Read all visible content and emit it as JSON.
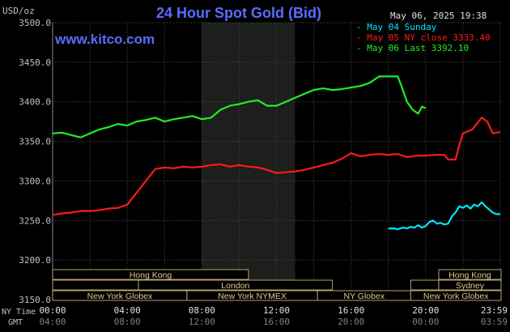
{
  "header": {
    "title": "24 Hour Spot Gold (Bid)",
    "date": "May 06, 2025 19:38",
    "site": "www.kitco.com",
    "units": "USD/oz"
  },
  "legend": [
    {
      "text": "May 04 Sunday",
      "color": "#00e5ff"
    },
    {
      "text": "May 05 NY close 3333.40",
      "color": "#ff1a1a"
    },
    {
      "text": "May 06 Last 3392.10",
      "color": "#22ee22"
    }
  ],
  "axis": {
    "nytime_label": "NY Time",
    "gmt_label": "GMT",
    "x_ticks_ny": [
      "00:00",
      "04:00",
      "08:00",
      "12:00",
      "16:00",
      "20:00",
      "23:59"
    ],
    "x_ticks_gmt": [
      "04:00",
      "08:00",
      "12:00",
      "16:00",
      "20:00",
      "00:00",
      "03:59"
    ],
    "y_ticks": [
      "3500.0",
      "3450.0",
      "3400.0",
      "3350.0",
      "3300.0",
      "3250.0",
      "3200.0",
      "3150.0"
    ]
  },
  "markets": {
    "hong_kong_left": "Hong Kong",
    "london": "London",
    "ny_globex_left": "New York Globex",
    "ny_nymex": "New York NYMEX",
    "ny_globex_mid": "NY Globex",
    "hong_kong_right": "Hong Kong",
    "sydney": "Sydney",
    "ny_globex_right": "New York Globex"
  },
  "colors": {
    "background": "#000000",
    "plot_bg": "#000000",
    "shade": "#1c1f1c",
    "grid": "#4a4a4a",
    "title": "#5a6cff",
    "site": "#5a6cff",
    "text": "#c0c0c0",
    "box_fill": "#000000",
    "box_stroke": "#b8a070",
    "box_text": "#e0c890"
  },
  "chart_data": {
    "type": "line",
    "ylim": [
      3150,
      3500
    ],
    "xlim": [
      0,
      24
    ],
    "x_unit": "hours (NY time)",
    "grid": true,
    "shaded_hours": [
      8,
      13
    ],
    "series": [
      {
        "name": "May 04 Sunday",
        "color": "#00e5ff",
        "points": [
          [
            18.0,
            3240
          ],
          [
            18.3,
            3240
          ],
          [
            18.5,
            3239
          ],
          [
            18.8,
            3241
          ],
          [
            19.0,
            3240
          ],
          [
            19.2,
            3242
          ],
          [
            19.4,
            3241
          ],
          [
            19.6,
            3244
          ],
          [
            19.8,
            3241
          ],
          [
            20.0,
            3243
          ],
          [
            20.2,
            3248
          ],
          [
            20.4,
            3250
          ],
          [
            20.6,
            3246
          ],
          [
            20.8,
            3247
          ],
          [
            21.0,
            3245
          ],
          [
            21.2,
            3246
          ],
          [
            21.4,
            3255
          ],
          [
            21.6,
            3260
          ],
          [
            21.8,
            3268
          ],
          [
            22.0,
            3266
          ],
          [
            22.2,
            3269
          ],
          [
            22.4,
            3265
          ],
          [
            22.6,
            3270
          ],
          [
            22.8,
            3268
          ],
          [
            23.0,
            3273
          ],
          [
            23.2,
            3268
          ],
          [
            23.4,
            3264
          ],
          [
            23.6,
            3260
          ],
          [
            23.8,
            3258
          ],
          [
            24.0,
            3258
          ]
        ]
      },
      {
        "name": "May 05 NY close 3333.40",
        "color": "#ff1a1a",
        "points": [
          [
            0,
            3257
          ],
          [
            0.5,
            3259
          ],
          [
            1.0,
            3260
          ],
          [
            1.5,
            3262
          ],
          [
            2.0,
            3262
          ],
          [
            2.5,
            3263
          ],
          [
            3.0,
            3265
          ],
          [
            3.5,
            3266
          ],
          [
            4.0,
            3270
          ],
          [
            4.5,
            3285
          ],
          [
            5.0,
            3300
          ],
          [
            5.5,
            3315
          ],
          [
            6.0,
            3317
          ],
          [
            6.5,
            3316
          ],
          [
            7.0,
            3318
          ],
          [
            7.5,
            3317
          ],
          [
            8.0,
            3318
          ],
          [
            8.5,
            3320
          ],
          [
            9.0,
            3321
          ],
          [
            9.5,
            3318
          ],
          [
            10.0,
            3320
          ],
          [
            10.5,
            3318
          ],
          [
            11.0,
            3317
          ],
          [
            11.5,
            3314
          ],
          [
            12.0,
            3310
          ],
          [
            12.5,
            3311
          ],
          [
            13.0,
            3312
          ],
          [
            13.5,
            3314
          ],
          [
            14.0,
            3317
          ],
          [
            14.5,
            3320
          ],
          [
            15.0,
            3323
          ],
          [
            15.5,
            3328
          ],
          [
            16.0,
            3335
          ],
          [
            16.5,
            3331
          ],
          [
            17.0,
            3333
          ],
          [
            17.5,
            3334
          ],
          [
            18.0,
            3333
          ],
          [
            18.5,
            3334
          ],
          [
            19.0,
            3330
          ],
          [
            19.5,
            3332
          ],
          [
            20.0,
            3332
          ],
          [
            20.5,
            3333
          ],
          [
            21.0,
            3333
          ],
          [
            21.2,
            3327
          ],
          [
            21.6,
            3327
          ],
          [
            21.8,
            3345
          ],
          [
            22.0,
            3360
          ],
          [
            22.5,
            3365
          ],
          [
            23.0,
            3380
          ],
          [
            23.3,
            3375
          ],
          [
            23.6,
            3360
          ],
          [
            24.0,
            3362
          ]
        ]
      },
      {
        "name": "May 06 Last 3392.10",
        "color": "#22ee22",
        "points": [
          [
            0,
            3360
          ],
          [
            0.5,
            3361
          ],
          [
            1.0,
            3358
          ],
          [
            1.5,
            3355
          ],
          [
            2.0,
            3360
          ],
          [
            2.5,
            3365
          ],
          [
            3.0,
            3368
          ],
          [
            3.5,
            3372
          ],
          [
            4.0,
            3370
          ],
          [
            4.5,
            3375
          ],
          [
            5.0,
            3377
          ],
          [
            5.5,
            3380
          ],
          [
            6.0,
            3375
          ],
          [
            6.5,
            3378
          ],
          [
            7.0,
            3380
          ],
          [
            7.5,
            3382
          ],
          [
            8.0,
            3378
          ],
          [
            8.5,
            3380
          ],
          [
            9.0,
            3390
          ],
          [
            9.5,
            3395
          ],
          [
            10.0,
            3397
          ],
          [
            10.5,
            3400
          ],
          [
            11.0,
            3402
          ],
          [
            11.5,
            3395
          ],
          [
            12.0,
            3395
          ],
          [
            12.5,
            3400
          ],
          [
            13.0,
            3405
          ],
          [
            13.5,
            3410
          ],
          [
            14.0,
            3415
          ],
          [
            14.5,
            3417
          ],
          [
            15.0,
            3415
          ],
          [
            15.5,
            3416
          ],
          [
            16.0,
            3418
          ],
          [
            16.5,
            3420
          ],
          [
            17.0,
            3424
          ],
          [
            17.5,
            3432
          ],
          [
            18.0,
            3432
          ],
          [
            18.5,
            3432
          ],
          [
            18.7,
            3420
          ],
          [
            19.0,
            3400
          ],
          [
            19.3,
            3390
          ],
          [
            19.6,
            3385
          ],
          [
            19.8,
            3394
          ],
          [
            20.0,
            3392
          ]
        ]
      }
    ]
  }
}
